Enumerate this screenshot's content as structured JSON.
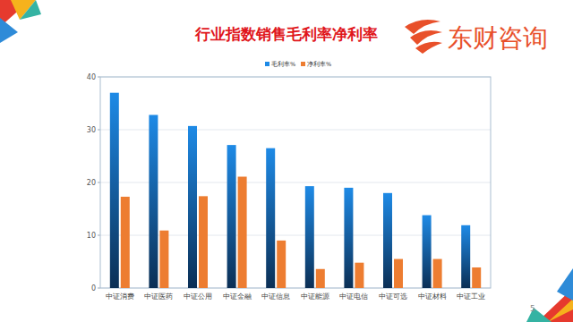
{
  "chart_data": {
    "type": "bar",
    "title": "行业指数销售毛利率净利率",
    "categories": [
      "中证消费",
      "中证医药",
      "中证公用",
      "中证金融",
      "中证信息",
      "中证能源",
      "中证电信",
      "中证可选",
      "中证材料",
      "中证工业"
    ],
    "series": [
      {
        "name": "毛利率%",
        "color": "#1e8ae6",
        "values": [
          37,
          32.8,
          30.7,
          27.1,
          26.5,
          19.3,
          19.0,
          18.0,
          13.8,
          11.9
        ]
      },
      {
        "name": "净利率%",
        "color": "#ed7d31",
        "values": [
          17.3,
          10.9,
          17.4,
          21.1,
          9.0,
          3.6,
          4.8,
          5.5,
          5.5,
          3.9
        ]
      }
    ],
    "ylim": [
      0,
      40
    ],
    "yticks": [
      0,
      10,
      20,
      30,
      40
    ],
    "grid": true,
    "legend": "top"
  },
  "page": {
    "logo": "东财咨询",
    "page_number": "5"
  }
}
